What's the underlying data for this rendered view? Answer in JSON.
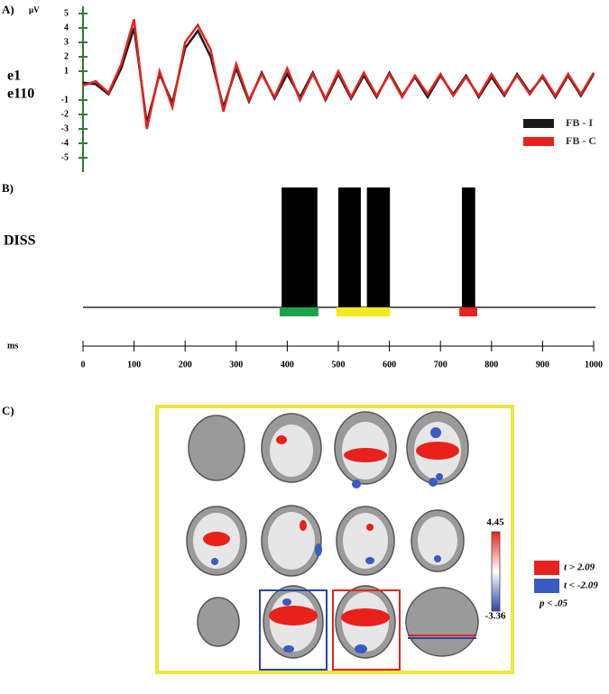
{
  "chart_data": [
    {
      "type": "line",
      "panel_label": "A)",
      "y_unit": "μV",
      "channel_labels": [
        "e1",
        "e110"
      ],
      "x": [
        0,
        25,
        50,
        75,
        100,
        125,
        150,
        175,
        200,
        225,
        250,
        275,
        300,
        325,
        350,
        375,
        400,
        425,
        450,
        475,
        500,
        525,
        550,
        575,
        600,
        625,
        650,
        675,
        700,
        725,
        750,
        775,
        800,
        825,
        850,
        875,
        900,
        925,
        950,
        975,
        1000
      ],
      "series": [
        {
          "name": "FB - I",
          "color": "#1a1a1a",
          "values": [
            0.2,
            0.1,
            -0.6,
            1.2,
            4.0,
            -2.6,
            0.8,
            -1.2,
            2.6,
            3.8,
            2.0,
            -1.5,
            1.2,
            -1.1,
            0.9,
            -0.9,
            0.8,
            -0.8,
            0.9,
            -1.0,
            0.8,
            -0.9,
            0.7,
            -0.8,
            0.9,
            -0.7,
            0.6,
            -0.8,
            0.7,
            -0.6,
            0.7,
            -0.8,
            0.6,
            -0.7,
            0.8,
            -0.5,
            0.6,
            -0.8,
            0.7,
            -0.7,
            0.8
          ]
        },
        {
          "name": "FB - C",
          "color": "#e8211c",
          "values": [
            0,
            0.3,
            -0.5,
            1.5,
            4.6,
            -3.0,
            1.0,
            -1.5,
            3.0,
            4.2,
            2.5,
            -1.8,
            1.5,
            -1.0,
            0.8,
            -0.8,
            1.2,
            -1.0,
            0.8,
            -0.9,
            1.0,
            -0.8,
            0.9,
            -0.7,
            0.8,
            -0.8,
            0.7,
            -0.6,
            0.8,
            -0.7,
            0.6,
            -0.7,
            0.8,
            -0.6,
            0.7,
            -0.6,
            0.7,
            -0.7,
            0.8,
            -0.6,
            0.9
          ]
        }
      ],
      "xlim": [
        0,
        1000
      ],
      "ylim": [
        -5.5,
        5.5
      ],
      "yticks": [
        5,
        4,
        3,
        2,
        1,
        -1,
        -2,
        -3,
        -4,
        -5
      ],
      "axis_color": "#2e7d32"
    },
    {
      "type": "interval",
      "panel_label": "B)",
      "title": "DISS",
      "xlabel": "ms",
      "intervals": [
        [
          389,
          459
        ],
        [
          500,
          544
        ],
        [
          556,
          601
        ],
        [
          742,
          768
        ]
      ],
      "color": "#000000",
      "windows": [
        {
          "color": "#1aa34a",
          "range": [
            385,
            461
          ]
        },
        {
          "color": "#f2ea1d",
          "range": [
            496,
            601
          ]
        },
        {
          "color": "#e8211c",
          "range": [
            737,
            772
          ]
        }
      ],
      "xlim": [
        0,
        1000
      ],
      "xticks": [
        0,
        100,
        200,
        300,
        400,
        500,
        600,
        700,
        800,
        900,
        1000
      ]
    }
  ],
  "panel_c": {
    "panel_label": "C)",
    "colorbar": {
      "max_label": "4.45",
      "min_label": "-3.36"
    },
    "legend": [
      {
        "label": "t > 2.09",
        "color": "#e8211c"
      },
      {
        "label": "t < -2.09",
        "color": "#3a5bbf"
      }
    ],
    "significance": "p < .05"
  }
}
